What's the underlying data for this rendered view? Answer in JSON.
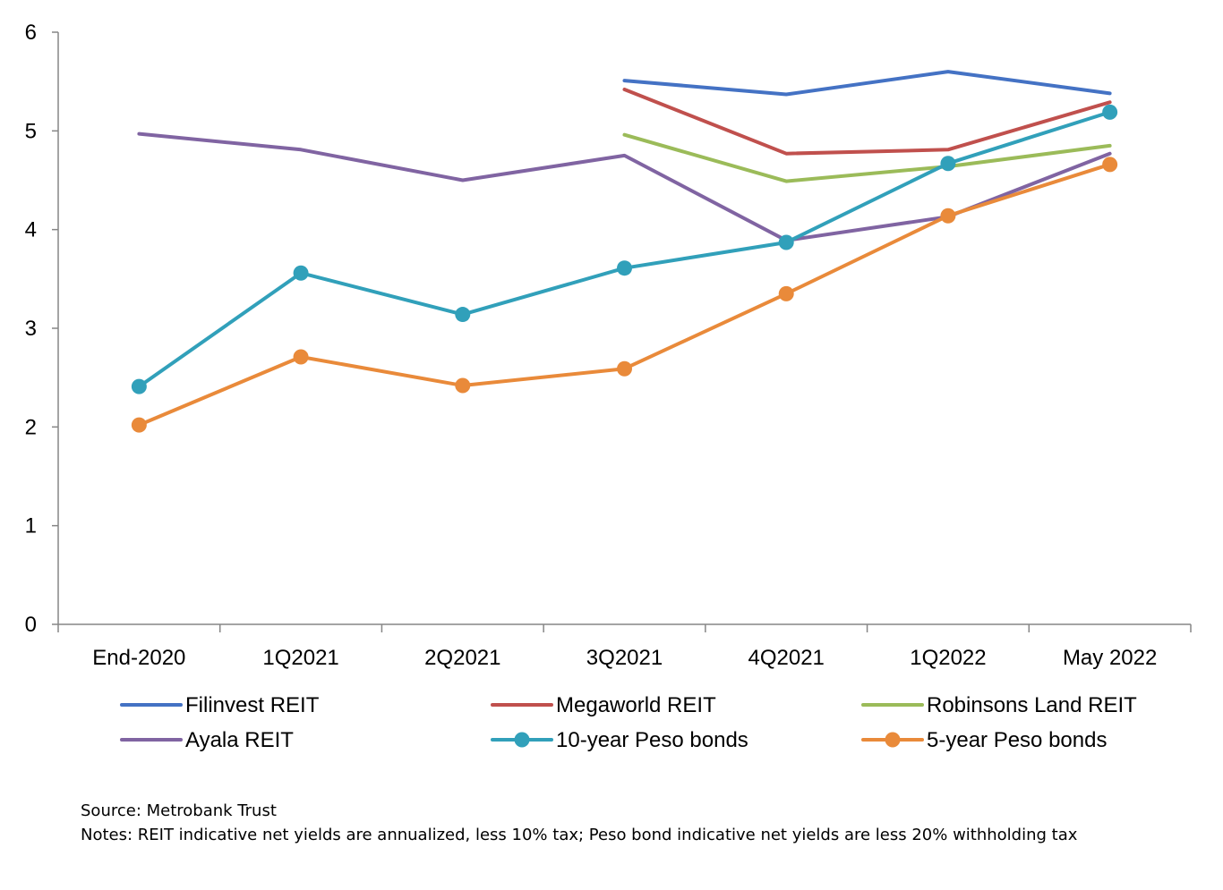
{
  "chart_data": {
    "type": "line",
    "title": "",
    "xlabel": "",
    "ylabel": "",
    "ylim": [
      0,
      6
    ],
    "yticks": [
      0,
      1,
      2,
      3,
      4,
      5,
      6
    ],
    "grid": false,
    "categories": [
      "End-2020",
      "1Q2021",
      "2Q2021",
      "3Q2021",
      "4Q2021",
      "1Q2022",
      "May 2022"
    ],
    "series": [
      {
        "name": "Filinvest REIT",
        "color": "#4472C4",
        "markers": false,
        "values": [
          null,
          null,
          null,
          5.51,
          5.37,
          5.6,
          5.38
        ]
      },
      {
        "name": "Megaworld REIT",
        "color": "#C0504D",
        "markers": false,
        "values": [
          null,
          null,
          null,
          5.42,
          4.77,
          4.81,
          5.29
        ]
      },
      {
        "name": "Robinsons Land REIT",
        "color": "#9BBB59",
        "markers": false,
        "values": [
          null,
          null,
          null,
          4.96,
          4.49,
          4.64,
          4.85
        ]
      },
      {
        "name": "Ayala REIT",
        "color": "#8064A2",
        "markers": false,
        "values": [
          4.97,
          4.81,
          4.5,
          4.75,
          3.89,
          4.13,
          4.77
        ]
      },
      {
        "name": "10-year Peso bonds",
        "color": "#31A0BA",
        "markers": true,
        "values": [
          2.41,
          3.56,
          3.14,
          3.61,
          3.87,
          4.67,
          5.19
        ]
      },
      {
        "name": "5-year Peso bonds",
        "color": "#E98A3A",
        "markers": true,
        "values": [
          2.02,
          2.71,
          2.42,
          2.59,
          3.35,
          4.14,
          4.66
        ]
      }
    ],
    "legend_position": "bottom"
  },
  "notes": {
    "source": "Source: Metrobank Trust",
    "notes": "Notes: REIT indicative net yields are annualized, less 10% tax; Peso bond indicative net yields are less 20% withholding tax"
  }
}
